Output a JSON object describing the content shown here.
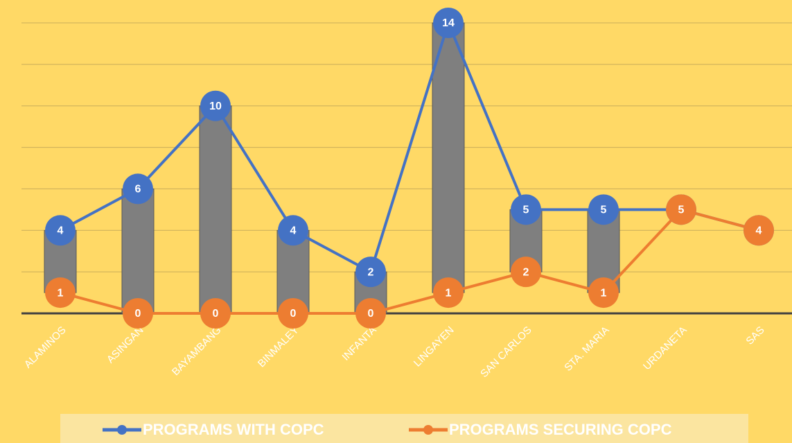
{
  "chart_data": {
    "type": "line",
    "categories": [
      "ALAMINOS",
      "ASINGAN",
      "BAYAMBANG",
      "BINMALEY",
      "INFANTA",
      "LINGAYEN",
      "SAN CARLOS",
      "STA. MARIA",
      "URDANETA",
      "SAS"
    ],
    "series": [
      {
        "name": "PROGRAMS WITH COPC",
        "color": "#4472c4",
        "values": [
          4,
          6,
          10,
          4,
          2,
          14,
          5,
          5,
          5,
          4
        ]
      },
      {
        "name": "PROGRAMS SECURING COPC",
        "color": "#ed7d31",
        "values": [
          1,
          0,
          0,
          0,
          0,
          1,
          2,
          1,
          5,
          4
        ]
      }
    ],
    "high_low_color": "#7f7f7f",
    "ylim": [
      0,
      14
    ],
    "yticks": [
      0,
      2,
      4,
      6,
      8,
      10,
      12,
      14
    ],
    "grid": true,
    "legend": "bottom"
  }
}
